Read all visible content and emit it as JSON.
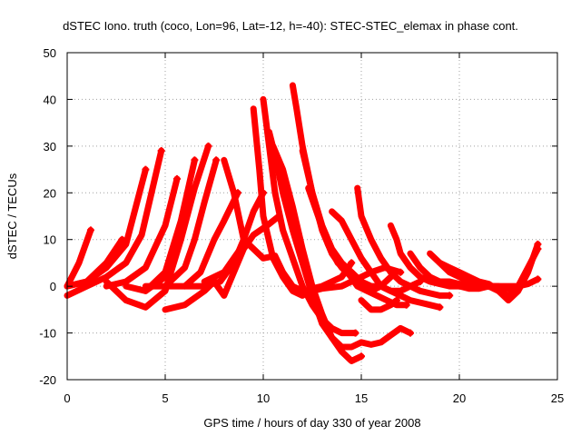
{
  "chart_data": {
    "type": "scatter",
    "title": "dSTEC Iono. truth (coco, Lon=96, Lat=-12, h=-40): STEC-STEC_elemax in phase cont.",
    "xlabel": "GPS time / hours of day 330 of year 2008",
    "ylabel": "dSTEC  / TECUs",
    "xlim": [
      0,
      25
    ],
    "ylim": [
      -20,
      50
    ],
    "xticks": [
      0,
      5,
      10,
      15,
      20,
      25
    ],
    "yticks": [
      -20,
      -10,
      0,
      10,
      20,
      30,
      40,
      50
    ],
    "grid": true,
    "marker": "plus",
    "color": "#ff0000",
    "series": [
      {
        "x": [
          0.0,
          0.6,
          1.2
        ],
        "y": [
          0,
          5,
          12
        ]
      },
      {
        "x": [
          0.0,
          1.0,
          2.0,
          3.0,
          3.5,
          4.0
        ],
        "y": [
          0,
          1,
          4,
          9,
          17,
          25
        ]
      },
      {
        "x": [
          0.0,
          1.0,
          2.0,
          3.0,
          3.8,
          4.3,
          4.8
        ],
        "y": [
          -2,
          0,
          2,
          5,
          11,
          20,
          29
        ]
      },
      {
        "x": [
          0.0,
          1.0,
          2.0,
          2.8
        ],
        "y": [
          0,
          1,
          5,
          10
        ]
      },
      {
        "x": [
          2.0,
          3.0,
          4.0,
          5.0,
          5.6
        ],
        "y": [
          0,
          1,
          4,
          13,
          23
        ]
      },
      {
        "x": [
          2.0,
          3.0,
          4.0,
          5.0,
          5.8,
          6.3
        ],
        "y": [
          1,
          -3,
          -4.5,
          -1,
          10,
          21
        ]
      },
      {
        "x": [
          3.0,
          4.0,
          5.0,
          5.8,
          6.5
        ],
        "y": [
          0,
          -1,
          3,
          14,
          27
        ]
      },
      {
        "x": [
          4.0,
          5.0,
          5.8,
          6.5,
          7.2
        ],
        "y": [
          -1,
          2,
          10,
          21,
          30
        ]
      },
      {
        "x": [
          4.0,
          5.0,
          6.0,
          6.5,
          7.0,
          7.6
        ],
        "y": [
          0,
          0,
          4,
          10,
          18,
          27
        ]
      },
      {
        "x": [
          5.0,
          6.0,
          6.8,
          7.5,
          8.0,
          8.7
        ],
        "y": [
          0,
          0,
          3,
          10,
          14,
          20
        ]
      },
      {
        "x": [
          5.0,
          6.0,
          7.0,
          7.5,
          8.0,
          8.5,
          9.0,
          9.5,
          10.2,
          10.8
        ],
        "y": [
          -5,
          -4,
          -1,
          1,
          -2,
          3,
          8,
          11,
          13,
          15
        ]
      },
      {
        "x": [
          6.0,
          7.0,
          7.8,
          8.5,
          9.0,
          9.5,
          10.0
        ],
        "y": [
          0,
          0,
          1,
          5,
          10,
          16,
          20
        ]
      },
      {
        "x": [
          7.0,
          8.0,
          8.5,
          9.0
        ],
        "y": [
          1,
          3,
          6,
          9
        ]
      },
      {
        "x": [
          8.0,
          8.5,
          9.0,
          10.0,
          10.6,
          11.0,
          11.5,
          12.0,
          12.5,
          13.0,
          14.0,
          14.5,
          15.0,
          15.5,
          16.2,
          17.0
        ],
        "y": [
          27,
          20,
          10,
          6,
          6.5,
          3,
          0,
          -1,
          -1,
          -0.5,
          0,
          1,
          2,
          3,
          4,
          3
        ]
      },
      {
        "x": [
          9.5,
          9.8,
          10.0,
          10.5,
          11.0,
          11.5,
          12.0,
          12.5,
          13.0,
          13.5,
          14.0,
          14.5
        ],
        "y": [
          38,
          25,
          15,
          6,
          2,
          -1,
          -2,
          -0.5,
          0,
          1,
          2,
          5
        ]
      },
      {
        "x": [
          10.0,
          10.3,
          10.6,
          11.0,
          11.5,
          12.0,
          12.5,
          13.0,
          13.5,
          14.0,
          14.7
        ],
        "y": [
          40,
          30,
          20,
          12,
          6,
          0,
          -4,
          -7,
          -9,
          -10,
          -10
        ]
      },
      {
        "x": [
          10.3,
          10.6,
          11.0,
          11.5,
          12.0,
          12.5,
          13.0,
          13.5,
          14.0,
          14.5,
          15.0,
          15.5,
          16.0,
          16.5,
          17.0,
          17.5
        ],
        "y": [
          33,
          28,
          20,
          12,
          5,
          -2,
          -8,
          -11,
          -13,
          -13,
          -12,
          -12.5,
          -12,
          -10.5,
          -9,
          -10
        ]
      },
      {
        "x": [
          10.5,
          11.0,
          11.5,
          12.0,
          12.5,
          13.0,
          13.5,
          14.0,
          14.5,
          15.0
        ],
        "y": [
          30,
          25,
          17,
          8,
          0,
          -6,
          -11,
          -14,
          -16,
          -15
        ]
      },
      {
        "x": [
          11.5,
          11.7,
          12.0,
          12.5,
          13.0,
          13.5,
          14.0,
          14.5,
          15.0,
          15.5,
          16.0,
          16.5
        ],
        "y": [
          43,
          38,
          30,
          20,
          12,
          7,
          4,
          2,
          0,
          -1,
          0,
          2
        ]
      },
      {
        "x": [
          12.0,
          12.5,
          13.0,
          13.5,
          14.0,
          14.5,
          15.0,
          15.5,
          16.0,
          16.5,
          17.0,
          17.5,
          18.0
        ],
        "y": [
          29,
          20,
          13,
          8,
          5,
          3,
          1,
          0,
          0,
          -1,
          -1,
          0,
          1
        ]
      },
      {
        "x": [
          12.3,
          12.8,
          13.3,
          13.8,
          14.3,
          14.8,
          15.3,
          15.8,
          16.3,
          16.8,
          17.3
        ],
        "y": [
          21,
          15,
          9,
          5,
          3,
          0,
          -1,
          -2,
          -3,
          -4,
          -4
        ]
      },
      {
        "x": [
          13.5,
          14.0,
          14.5,
          15.0,
          15.5,
          16.0,
          16.5,
          17.0,
          17.5,
          18.0,
          18.5,
          19.0
        ],
        "y": [
          16,
          14,
          10,
          6,
          3,
          0,
          -1,
          -2,
          -3,
          -3.5,
          -4,
          -4.5
        ]
      },
      {
        "x": [
          14.8,
          15.0,
          15.5,
          16.0,
          16.5,
          17.0,
          17.5,
          18.0,
          18.5,
          19.0,
          19.5
        ],
        "y": [
          21,
          15,
          10,
          6,
          3,
          1,
          0,
          -1,
          -1.5,
          -2,
          -2
        ]
      },
      {
        "x": [
          15.0,
          15.5,
          16.0,
          16.5,
          16.8
        ],
        "y": [
          -3,
          -5,
          -5,
          -4,
          -3
        ]
      },
      {
        "x": [
          16.5,
          16.8,
          17.0,
          17.5,
          18.0,
          18.5,
          19.0,
          19.5,
          20.0,
          20.5,
          21.0,
          21.5
        ],
        "y": [
          13,
          10,
          7,
          4,
          2,
          1,
          0.5,
          0,
          0,
          -0.5,
          -0.5,
          0
        ]
      },
      {
        "x": [
          17.5,
          18.0,
          18.5,
          19.0,
          19.5,
          20.0,
          20.5,
          21.0,
          21.5,
          22.0,
          22.5,
          23.0
        ],
        "y": [
          7,
          4,
          2,
          1,
          1,
          0.5,
          0,
          0,
          0,
          0,
          -0.5,
          0
        ]
      },
      {
        "x": [
          18.5,
          19.0,
          19.5,
          20.0,
          20.5,
          21.0,
          21.5,
          22.0,
          22.5,
          23.0,
          23.5,
          24.0
        ],
        "y": [
          7,
          5,
          3,
          2,
          1,
          0,
          0,
          -1,
          -2,
          0,
          4,
          8
        ]
      },
      {
        "x": [
          19.0,
          19.5,
          20.0,
          20.5,
          21.0,
          21.5,
          22.0,
          22.5,
          23.0,
          23.5,
          24.0
        ],
        "y": [
          5,
          4,
          3,
          2,
          1,
          0.5,
          -1,
          -3,
          -1,
          3,
          9
        ]
      },
      {
        "x": [
          20.0,
          21.0,
          22.0,
          23.0,
          23.5,
          24.0
        ],
        "y": [
          0.5,
          0,
          0,
          0,
          0.5,
          1.5
        ]
      }
    ]
  }
}
